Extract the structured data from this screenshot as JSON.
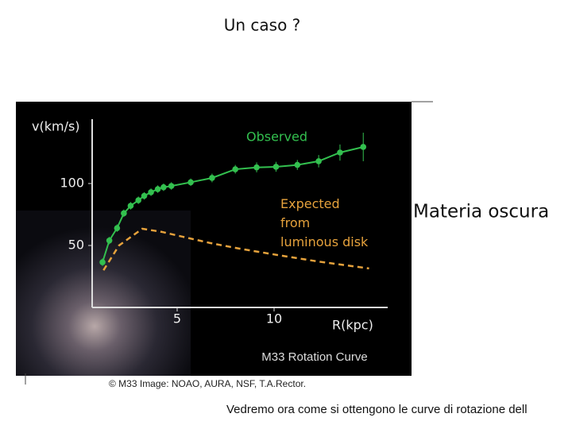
{
  "slide_title": "Un caso ?",
  "side_label": "Materia oscura",
  "image_credit": "© M33 Image: NOAO, AURA, NSF, T.A.Rector.",
  "footer_text": "Vedremo ora come si ottengono le curve di rotazione dell",
  "chart_data": {
    "type": "line",
    "title": "M33 Rotation Curve",
    "x_label": "R(kpc)",
    "y_label": "v(km/s)",
    "xlim": [
      0,
      16
    ],
    "ylim": [
      0,
      150
    ],
    "xticks": [
      5,
      10
    ],
    "yticks": [
      50,
      100
    ],
    "series": [
      {
        "name": "Observed",
        "color": "#33c04f",
        "markers": true,
        "x": [
          1.15,
          1.5,
          1.9,
          2.25,
          2.6,
          3.0,
          3.3,
          3.65,
          4.0,
          4.3,
          4.7,
          5.7,
          6.8,
          8.0,
          9.1,
          10.1,
          11.2,
          12.3,
          13.4,
          14.6
        ],
        "values": [
          36.5,
          54,
          64,
          76,
          82,
          86.5,
          90,
          93,
          95.5,
          97,
          98,
          101,
          104.5,
          111.5,
          113,
          113.5,
          115,
          118,
          125,
          129.5
        ],
        "errors": [
          3,
          3,
          3,
          3,
          3,
          3,
          3,
          3,
          3,
          3,
          3,
          3,
          3.5,
          3.5,
          4,
          4,
          4,
          5,
          6.5,
          11.5
        ]
      },
      {
        "name": "Expected from luminous disk",
        "color": "#e6a23c",
        "dashed": true,
        "x": [
          1.2,
          2.0,
          3.2,
          4.2,
          5.3,
          6.7,
          8.2,
          10.3,
          12.3,
          14.9
        ],
        "values": [
          30,
          50,
          63.5,
          61,
          57,
          52,
          47.5,
          42,
          37,
          31.5
        ]
      }
    ]
  }
}
